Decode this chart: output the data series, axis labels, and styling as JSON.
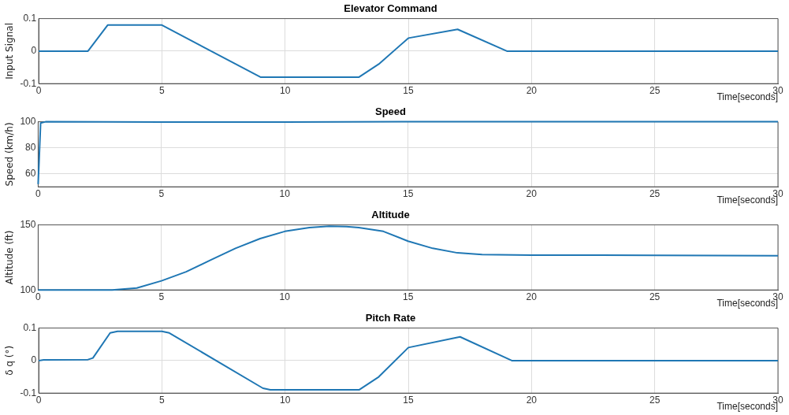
{
  "chart_data": [
    {
      "type": "line",
      "title": "Elevator Command",
      "xlabel": "Time[seconds]",
      "ylabel": "Input Signal",
      "xlim": [
        0,
        30
      ],
      "xticks": [
        0,
        5,
        10,
        15,
        20,
        25,
        30
      ],
      "ylim": [
        -0.1,
        0.1
      ],
      "yticks": [
        -0.1,
        0,
        0.1
      ],
      "grid": true,
      "legend": false,
      "marker": "none",
      "line_style": "solid",
      "series": [
        {
          "color": "#1f77b4",
          "x": [
            0,
            2,
            2.8,
            5,
            9,
            13,
            13.8,
            15,
            17,
            19,
            30
          ],
          "values": [
            0,
            0,
            0.08,
            0.08,
            -0.08,
            -0.08,
            -0.04,
            0.04,
            0.067,
            0,
            0
          ]
        }
      ]
    },
    {
      "type": "line",
      "title": "Speed",
      "xlabel": "Time[seconds]",
      "ylabel": "Speed (km/h)",
      "xlim": [
        0,
        30
      ],
      "xticks": [
        0,
        5,
        10,
        15,
        20,
        25,
        30
      ],
      "ylim": [
        50,
        100
      ],
      "yticks": [
        {
          "value": 50,
          "label": null
        },
        60,
        80,
        100
      ],
      "grid": true,
      "legend": false,
      "marker": "none",
      "line_style": "solid",
      "series": [
        {
          "color": "#1f77b4",
          "x": [
            0,
            0.1,
            0.3,
            5,
            10,
            15,
            20,
            25,
            30
          ],
          "values": [
            52,
            99,
            100,
            99.7,
            99.8,
            100,
            100,
            100,
            100
          ]
        }
      ]
    },
    {
      "type": "line",
      "title": "Altitude",
      "xlabel": "Time[seconds]",
      "ylabel": "Altitude (ft)",
      "xlim": [
        0,
        30
      ],
      "xticks": [
        0,
        5,
        10,
        15,
        20,
        25,
        30
      ],
      "ylim": [
        100,
        150
      ],
      "yticks": [
        100,
        150
      ],
      "grid": true,
      "legend": false,
      "marker": "none",
      "line_style": "solid",
      "series": [
        {
          "color": "#1f77b4",
          "x": [
            0,
            3,
            4,
            5,
            6,
            7,
            8,
            9,
            10,
            11,
            11.8,
            12.5,
            13,
            14,
            15,
            16,
            17,
            18,
            20,
            25,
            30
          ],
          "values": [
            100,
            100,
            101.5,
            107,
            114,
            123,
            132,
            139.5,
            145,
            148,
            149,
            148.7,
            148,
            145,
            137.5,
            132,
            128.5,
            127.2,
            126.8,
            126.6,
            126.3
          ]
        }
      ]
    },
    {
      "type": "line",
      "title": "Pitch Rate",
      "xlabel": "Time[seconds]",
      "ylabel": "δ q (°)",
      "xlim": [
        0,
        30
      ],
      "xticks": [
        0,
        5,
        10,
        15,
        20,
        25,
        30
      ],
      "ylim": [
        -0.1,
        0.1
      ],
      "yticks": [
        -0.1,
        0,
        0.1
      ],
      "grid": true,
      "legend": false,
      "marker": "none",
      "line_style": "solid",
      "series": [
        {
          "color": "#1f77b4",
          "x": [
            0,
            0.2,
            2,
            2.2,
            2.9,
            3.2,
            5,
            5.3,
            9.1,
            9.4,
            13,
            13.8,
            15,
            17.1,
            19.2,
            30
          ],
          "values": [
            0,
            0.002,
            0.003,
            0.008,
            0.085,
            0.09,
            0.09,
            0.085,
            -0.085,
            -0.09,
            -0.09,
            -0.05,
            0.04,
            0.073,
            0,
            0
          ]
        }
      ]
    }
  ]
}
